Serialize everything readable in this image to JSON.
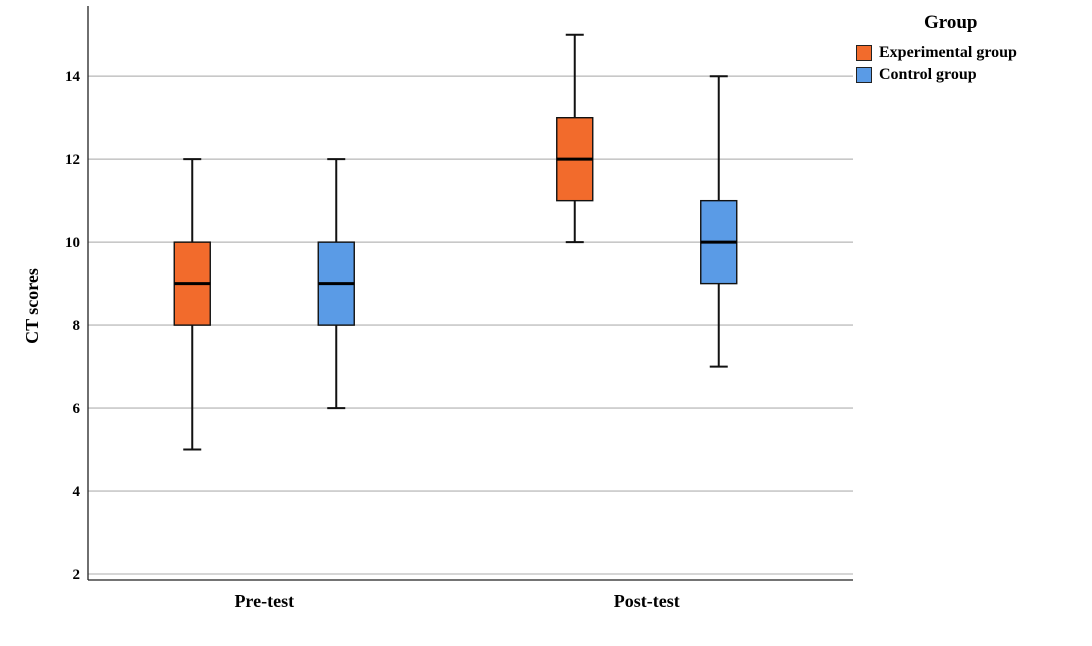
{
  "chart_data": {
    "type": "box",
    "ylabel": "CT scores",
    "ylim": [
      2,
      15.5
    ],
    "yticks": [
      2,
      4,
      6,
      8,
      10,
      12,
      14
    ],
    "grid": true,
    "legend_position": "top-right",
    "legend_title": "Group",
    "categories": [
      "Pre-test",
      "Post-test"
    ],
    "series": [
      {
        "name": "Experimental group",
        "color": "#F26B2C",
        "boxes": [
          {
            "min": 5,
            "q1": 8,
            "median": 9,
            "q3": 10,
            "max": 12
          },
          {
            "min": 10,
            "q1": 11,
            "median": 12,
            "q3": 13,
            "max": 15
          }
        ]
      },
      {
        "name": "Control group",
        "color": "#5A9BE6",
        "boxes": [
          {
            "min": 6,
            "q1": 8,
            "median": 9,
            "q3": 10,
            "max": 12
          },
          {
            "min": 7,
            "q1": 9,
            "median": 10,
            "q3": 11,
            "max": 14
          }
        ]
      }
    ]
  }
}
